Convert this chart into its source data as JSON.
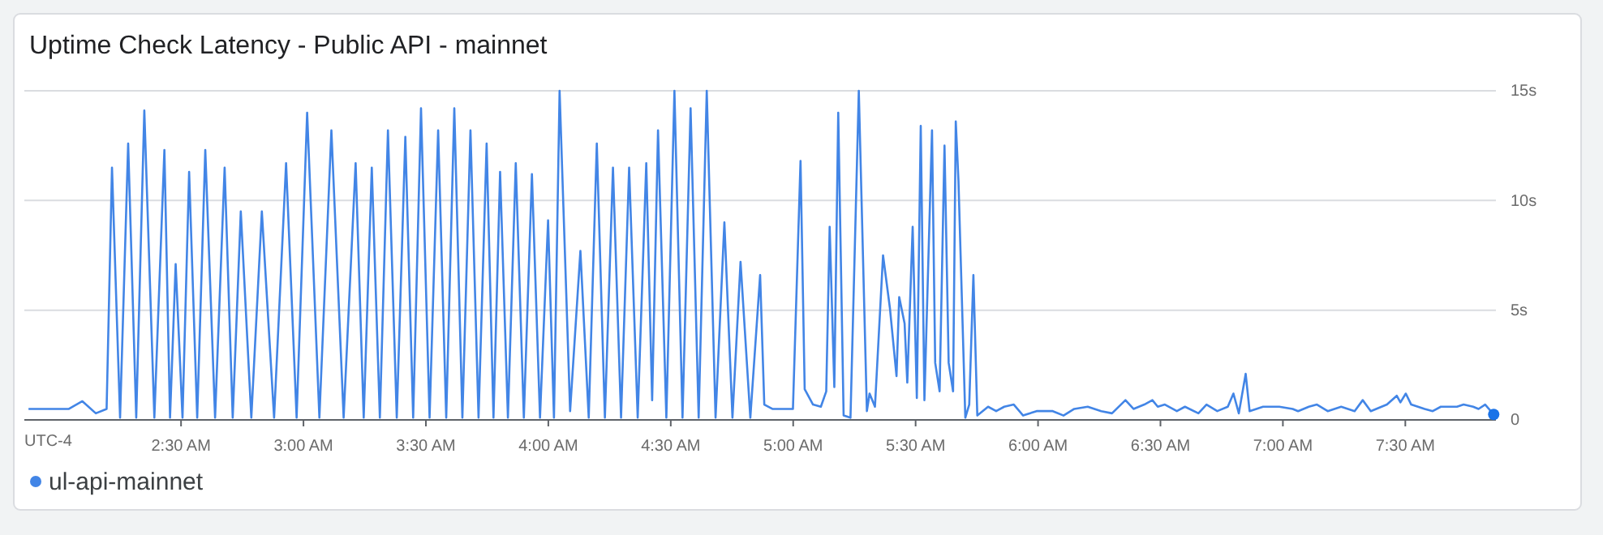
{
  "chart_data": {
    "type": "line",
    "title": "Uptime Check Latency - Public API - mainnet",
    "annotations": [
      "UTC-4"
    ],
    "xlim": [
      1.86,
      7.87
    ],
    "xticks": [
      {
        "value": 2.5,
        "label": "2:30 AM"
      },
      {
        "value": 3,
        "label": "3:00 AM"
      },
      {
        "value": 3.5,
        "label": "3:30 AM"
      },
      {
        "value": 4,
        "label": "4:00 AM"
      },
      {
        "value": 4.5,
        "label": "4:30 AM"
      },
      {
        "value": 5,
        "label": "5:00 AM"
      },
      {
        "value": 5.5,
        "label": "5:30 AM"
      },
      {
        "value": 6,
        "label": "6:00 AM"
      },
      {
        "value": 6.5,
        "label": "6:30 AM"
      },
      {
        "value": 7,
        "label": "7:00 AM"
      },
      {
        "value": 7.5,
        "label": "7:30 AM"
      }
    ],
    "ylim": [
      0,
      15
    ],
    "yticks": [
      0,
      {
        "value": 5,
        "label": "5s"
      },
      {
        "value": 10,
        "label": "10s"
      },
      {
        "value": 15,
        "label": "15s"
      }
    ],
    "grid": "y",
    "legend": "bottom left",
    "marker": "none",
    "line_style": "solid",
    "series": [
      {
        "name": "ul-api-mainnet",
        "color": "#4285e6",
        "x": [
          1.877,
          1.965,
          2.042,
          2.097,
          2.152,
          2.196,
          2.218,
          2.251,
          2.284,
          2.317,
          2.35,
          2.391,
          2.432,
          2.455,
          2.478,
          2.506,
          2.533,
          2.566,
          2.599,
          2.639,
          2.678,
          2.711,
          2.744,
          2.787,
          2.83,
          2.88,
          2.929,
          2.972,
          3.015,
          3.065,
          3.114,
          3.164,
          3.213,
          3.246,
          3.279,
          3.312,
          3.345,
          3.381,
          3.416,
          3.448,
          3.48,
          3.515,
          3.55,
          3.583,
          3.616,
          3.649,
          3.682,
          3.715,
          3.748,
          3.776,
          3.803,
          3.835,
          3.867,
          3.9,
          3.933,
          3.966,
          3.999,
          4.023,
          4.046,
          4.089,
          4.131,
          4.165,
          4.198,
          4.231,
          4.264,
          4.297,
          4.33,
          4.365,
          4.4,
          4.424,
          4.448,
          4.482,
          4.515,
          4.548,
          4.581,
          4.614,
          4.647,
          4.683,
          4.719,
          4.752,
          4.785,
          4.825,
          4.865,
          4.882,
          4.915,
          4.999,
          5.03,
          5.047,
          5.081,
          5.113,
          5.135,
          5.149,
          5.168,
          5.184,
          5.206,
          5.234,
          5.268,
          5.301,
          5.312,
          5.334,
          5.367,
          5.395,
          5.422,
          5.433,
          5.455,
          5.466,
          5.488,
          5.505,
          5.521,
          5.536,
          5.567,
          5.58,
          5.598,
          5.618,
          5.635,
          5.653,
          5.664,
          5.675,
          5.703,
          5.719,
          5.736,
          5.752,
          5.796,
          5.829,
          5.862,
          5.901,
          5.939,
          5.994,
          6.06,
          6.104,
          6.148,
          6.203,
          6.258,
          6.302,
          6.357,
          6.39,
          6.434,
          6.467,
          6.489,
          6.518,
          6.567,
          6.6,
          6.655,
          6.688,
          6.732,
          6.775,
          6.798,
          6.82,
          6.848,
          6.864,
          6.919,
          6.985,
          7.04,
          7.062,
          7.106,
          7.139,
          7.183,
          7.238,
          7.293,
          7.326,
          7.359,
          7.425,
          7.465,
          7.48,
          7.502,
          7.524,
          7.579,
          7.612,
          7.645,
          7.678,
          7.711,
          7.738,
          7.777,
          7.799,
          7.826,
          7.861
        ],
        "values": [
          0.5,
          0.5,
          0.5,
          0.85,
          0.3,
          0.5,
          11.5,
          0.1,
          12.6,
          0.1,
          14.1,
          0.1,
          12.3,
          0.1,
          7.1,
          0.1,
          11.3,
          0.1,
          12.3,
          0.1,
          11.5,
          0.1,
          9.5,
          0.1,
          9.5,
          0.1,
          11.7,
          0.1,
          14.0,
          0.1,
          13.2,
          0.1,
          11.7,
          0.1,
          11.5,
          0.1,
          13.2,
          0.1,
          12.9,
          0.1,
          14.2,
          0.1,
          13.2,
          0.1,
          14.2,
          0.1,
          13.2,
          0.1,
          12.6,
          0.1,
          11.3,
          0.1,
          11.7,
          0.1,
          11.2,
          0.1,
          9.1,
          0.1,
          15.0,
          0.4,
          7.7,
          0.1,
          12.6,
          0.1,
          11.5,
          0.1,
          11.5,
          0.1,
          11.7,
          0.9,
          13.2,
          0.1,
          15.0,
          0.1,
          14.2,
          0.1,
          15.0,
          0.1,
          9.0,
          0.1,
          7.2,
          0.1,
          6.6,
          0.7,
          0.5,
          0.5,
          11.8,
          1.4,
          0.7,
          0.6,
          1.3,
          8.8,
          1.5,
          14.0,
          0.2,
          0.1,
          15.0,
          0.4,
          1.2,
          0.6,
          7.5,
          5.1,
          2.0,
          5.6,
          4.4,
          1.7,
          8.8,
          1.0,
          13.4,
          0.9,
          13.2,
          2.6,
          1.3,
          12.5,
          2.6,
          1.3,
          13.6,
          10.9,
          0.1,
          0.7,
          6.6,
          0.2,
          0.6,
          0.4,
          0.6,
          0.7,
          0.2,
          0.4,
          0.4,
          0.2,
          0.5,
          0.6,
          0.4,
          0.3,
          0.9,
          0.5,
          0.7,
          0.9,
          0.6,
          0.7,
          0.4,
          0.6,
          0.3,
          0.7,
          0.4,
          0.6,
          1.2,
          0.3,
          2.1,
          0.4,
          0.6,
          0.6,
          0.5,
          0.4,
          0.6,
          0.7,
          0.4,
          0.6,
          0.4,
          0.9,
          0.4,
          0.7,
          1.1,
          0.8,
          1.2,
          0.7,
          0.5,
          0.4,
          0.6,
          0.6,
          0.6,
          0.7,
          0.6,
          0.5,
          0.7,
          0.25
        ]
      }
    ]
  }
}
